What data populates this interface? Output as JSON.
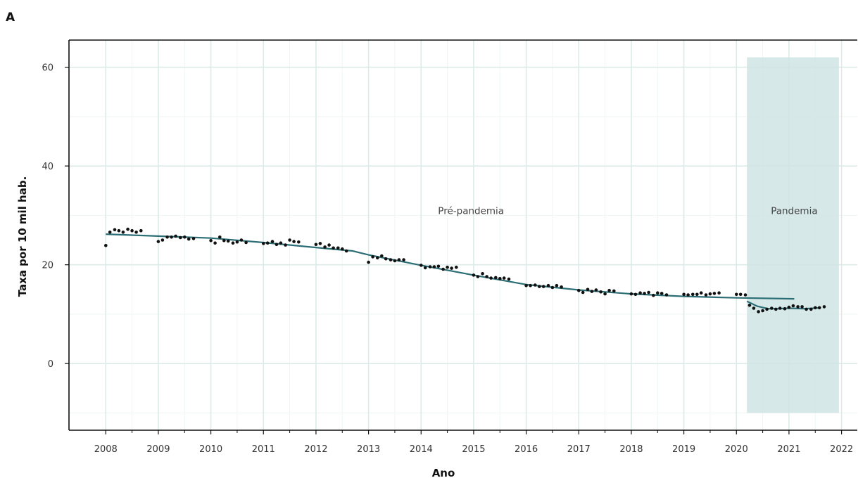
{
  "panel_label": "A",
  "colors": {
    "background": "#ffffff",
    "grid_major": "#dcebe8",
    "grid_minor": "#eef5f3",
    "pandemic_shade": "#cfe4e3",
    "trend_line": "#2c6e75",
    "points": "#111111",
    "axis": "#111111"
  },
  "chart_data": {
    "type": "scatter",
    "title": "",
    "xlabel": "Ano",
    "ylabel": "Taxa por 10 mil hab.",
    "xlim": [
      2007.3,
      2022.3
    ],
    "ylim": [
      -13.5,
      65.5
    ],
    "x_ticks": [
      2008,
      2009,
      2010,
      2011,
      2012,
      2013,
      2014,
      2015,
      2016,
      2017,
      2018,
      2019,
      2020,
      2021,
      2022
    ],
    "x_tick_labels": [
      "2008",
      "2009",
      "2010",
      "2011",
      "2012",
      "2013",
      "2014",
      "2015",
      "2016",
      "2017",
      "2018",
      "2019",
      "2020",
      "2021",
      "2022"
    ],
    "y_ticks": [
      0,
      20,
      40,
      60
    ],
    "y_tick_labels": [
      "0",
      "20",
      "40",
      "60"
    ],
    "grid": true,
    "shaded_region": {
      "x": [
        2020.2,
        2021.95
      ],
      "y": [
        -10,
        62
      ],
      "label": "Pandemia"
    },
    "annotations": [
      {
        "text": "Pré-pandemia",
        "x": 2014.95,
        "y": 31
      },
      {
        "text": "Pandemia",
        "x": 2021.1,
        "y": 31
      }
    ],
    "points": [
      [
        2008.0,
        23.9
      ],
      [
        2008.08,
        26.6
      ],
      [
        2008.17,
        27.1
      ],
      [
        2008.25,
        26.9
      ],
      [
        2008.33,
        26.6
      ],
      [
        2008.42,
        27.2
      ],
      [
        2008.5,
        26.9
      ],
      [
        2008.58,
        26.6
      ],
      [
        2008.67,
        26.9
      ],
      [
        2009.0,
        24.7
      ],
      [
        2009.08,
        25.0
      ],
      [
        2009.17,
        25.6
      ],
      [
        2009.25,
        25.6
      ],
      [
        2009.33,
        25.8
      ],
      [
        2009.42,
        25.5
      ],
      [
        2009.5,
        25.6
      ],
      [
        2009.58,
        25.2
      ],
      [
        2009.67,
        25.3
      ],
      [
        2010.0,
        24.9
      ],
      [
        2010.08,
        24.4
      ],
      [
        2010.17,
        25.6
      ],
      [
        2010.25,
        24.9
      ],
      [
        2010.33,
        24.8
      ],
      [
        2010.42,
        24.4
      ],
      [
        2010.5,
        24.6
      ],
      [
        2010.58,
        25.0
      ],
      [
        2010.67,
        24.5
      ],
      [
        2011.0,
        24.3
      ],
      [
        2011.08,
        24.4
      ],
      [
        2011.17,
        24.7
      ],
      [
        2011.25,
        24.1
      ],
      [
        2011.33,
        24.4
      ],
      [
        2011.42,
        24.0
      ],
      [
        2011.5,
        25.0
      ],
      [
        2011.58,
        24.7
      ],
      [
        2011.67,
        24.6
      ],
      [
        2012.0,
        24.1
      ],
      [
        2012.08,
        24.3
      ],
      [
        2012.17,
        23.6
      ],
      [
        2012.25,
        24.0
      ],
      [
        2012.33,
        23.4
      ],
      [
        2012.42,
        23.4
      ],
      [
        2012.5,
        23.2
      ],
      [
        2012.58,
        22.8
      ],
      [
        2013.0,
        20.5
      ],
      [
        2013.08,
        21.6
      ],
      [
        2013.17,
        21.4
      ],
      [
        2013.25,
        21.8
      ],
      [
        2013.33,
        21.2
      ],
      [
        2013.42,
        21.0
      ],
      [
        2013.5,
        20.8
      ],
      [
        2013.58,
        21.0
      ],
      [
        2013.67,
        21.0
      ],
      [
        2014.0,
        19.9
      ],
      [
        2014.08,
        19.4
      ],
      [
        2014.17,
        19.6
      ],
      [
        2014.25,
        19.6
      ],
      [
        2014.33,
        19.7
      ],
      [
        2014.42,
        19.1
      ],
      [
        2014.5,
        19.5
      ],
      [
        2014.58,
        19.3
      ],
      [
        2014.67,
        19.5
      ],
      [
        2015.0,
        17.9
      ],
      [
        2015.08,
        17.6
      ],
      [
        2015.17,
        18.2
      ],
      [
        2015.25,
        17.6
      ],
      [
        2015.33,
        17.3
      ],
      [
        2015.42,
        17.4
      ],
      [
        2015.5,
        17.2
      ],
      [
        2015.58,
        17.3
      ],
      [
        2015.67,
        17.1
      ],
      [
        2016.0,
        15.8
      ],
      [
        2016.08,
        15.8
      ],
      [
        2016.17,
        15.9
      ],
      [
        2016.25,
        15.6
      ],
      [
        2016.33,
        15.6
      ],
      [
        2016.42,
        15.8
      ],
      [
        2016.5,
        15.4
      ],
      [
        2016.58,
        15.8
      ],
      [
        2016.67,
        15.5
      ],
      [
        2017.0,
        14.8
      ],
      [
        2017.08,
        14.4
      ],
      [
        2017.17,
        15.0
      ],
      [
        2017.25,
        14.6
      ],
      [
        2017.33,
        14.9
      ],
      [
        2017.42,
        14.5
      ],
      [
        2017.5,
        14.1
      ],
      [
        2017.58,
        14.8
      ],
      [
        2017.67,
        14.7
      ],
      [
        2018.0,
        14.1
      ],
      [
        2018.08,
        14.0
      ],
      [
        2018.17,
        14.3
      ],
      [
        2018.25,
        14.2
      ],
      [
        2018.33,
        14.4
      ],
      [
        2018.42,
        13.8
      ],
      [
        2018.5,
        14.3
      ],
      [
        2018.58,
        14.2
      ],
      [
        2018.67,
        13.9
      ],
      [
        2019.0,
        14.0
      ],
      [
        2019.08,
        13.9
      ],
      [
        2019.17,
        14.0
      ],
      [
        2019.25,
        14.0
      ],
      [
        2019.33,
        14.3
      ],
      [
        2019.42,
        13.9
      ],
      [
        2019.5,
        14.1
      ],
      [
        2019.58,
        14.2
      ],
      [
        2019.67,
        14.3
      ],
      [
        2020.0,
        14.0
      ],
      [
        2020.08,
        14.0
      ],
      [
        2020.17,
        13.9
      ],
      [
        2020.25,
        11.8
      ],
      [
        2020.33,
        11.2
      ],
      [
        2020.42,
        10.5
      ],
      [
        2020.5,
        10.7
      ],
      [
        2020.58,
        11.0
      ],
      [
        2020.67,
        11.2
      ],
      [
        2020.75,
        11.0
      ],
      [
        2020.83,
        11.2
      ],
      [
        2020.92,
        11.1
      ],
      [
        2021.0,
        11.4
      ],
      [
        2021.08,
        11.7
      ],
      [
        2021.17,
        11.5
      ],
      [
        2021.25,
        11.5
      ],
      [
        2021.33,
        11.0
      ],
      [
        2021.42,
        11.0
      ],
      [
        2021.5,
        11.3
      ],
      [
        2021.58,
        11.3
      ],
      [
        2021.67,
        11.5
      ]
    ],
    "series": [
      {
        "values": [
          [
            2008.0,
            26.2
          ],
          [
            2009.0,
            25.8
          ],
          [
            2010.0,
            25.4
          ],
          [
            2011.0,
            24.5
          ],
          [
            2012.0,
            23.5
          ],
          [
            2012.7,
            22.8
          ],
          [
            2013.0,
            22.0
          ],
          [
            2014.0,
            19.9
          ],
          [
            2015.0,
            17.9
          ],
          [
            2016.0,
            16.0
          ],
          [
            2017.0,
            14.9
          ],
          [
            2018.0,
            14.1
          ],
          [
            2019.0,
            13.6
          ],
          [
            2020.0,
            13.3
          ],
          [
            2021.1,
            13.1
          ]
        ]
      },
      {
        "values": [
          [
            2020.2,
            12.6
          ],
          [
            2020.4,
            11.6
          ],
          [
            2020.6,
            11.1
          ],
          [
            2020.8,
            11.1
          ],
          [
            2021.0,
            11.2
          ],
          [
            2021.3,
            11.1
          ],
          [
            2021.6,
            11.3
          ]
        ]
      }
    ]
  }
}
